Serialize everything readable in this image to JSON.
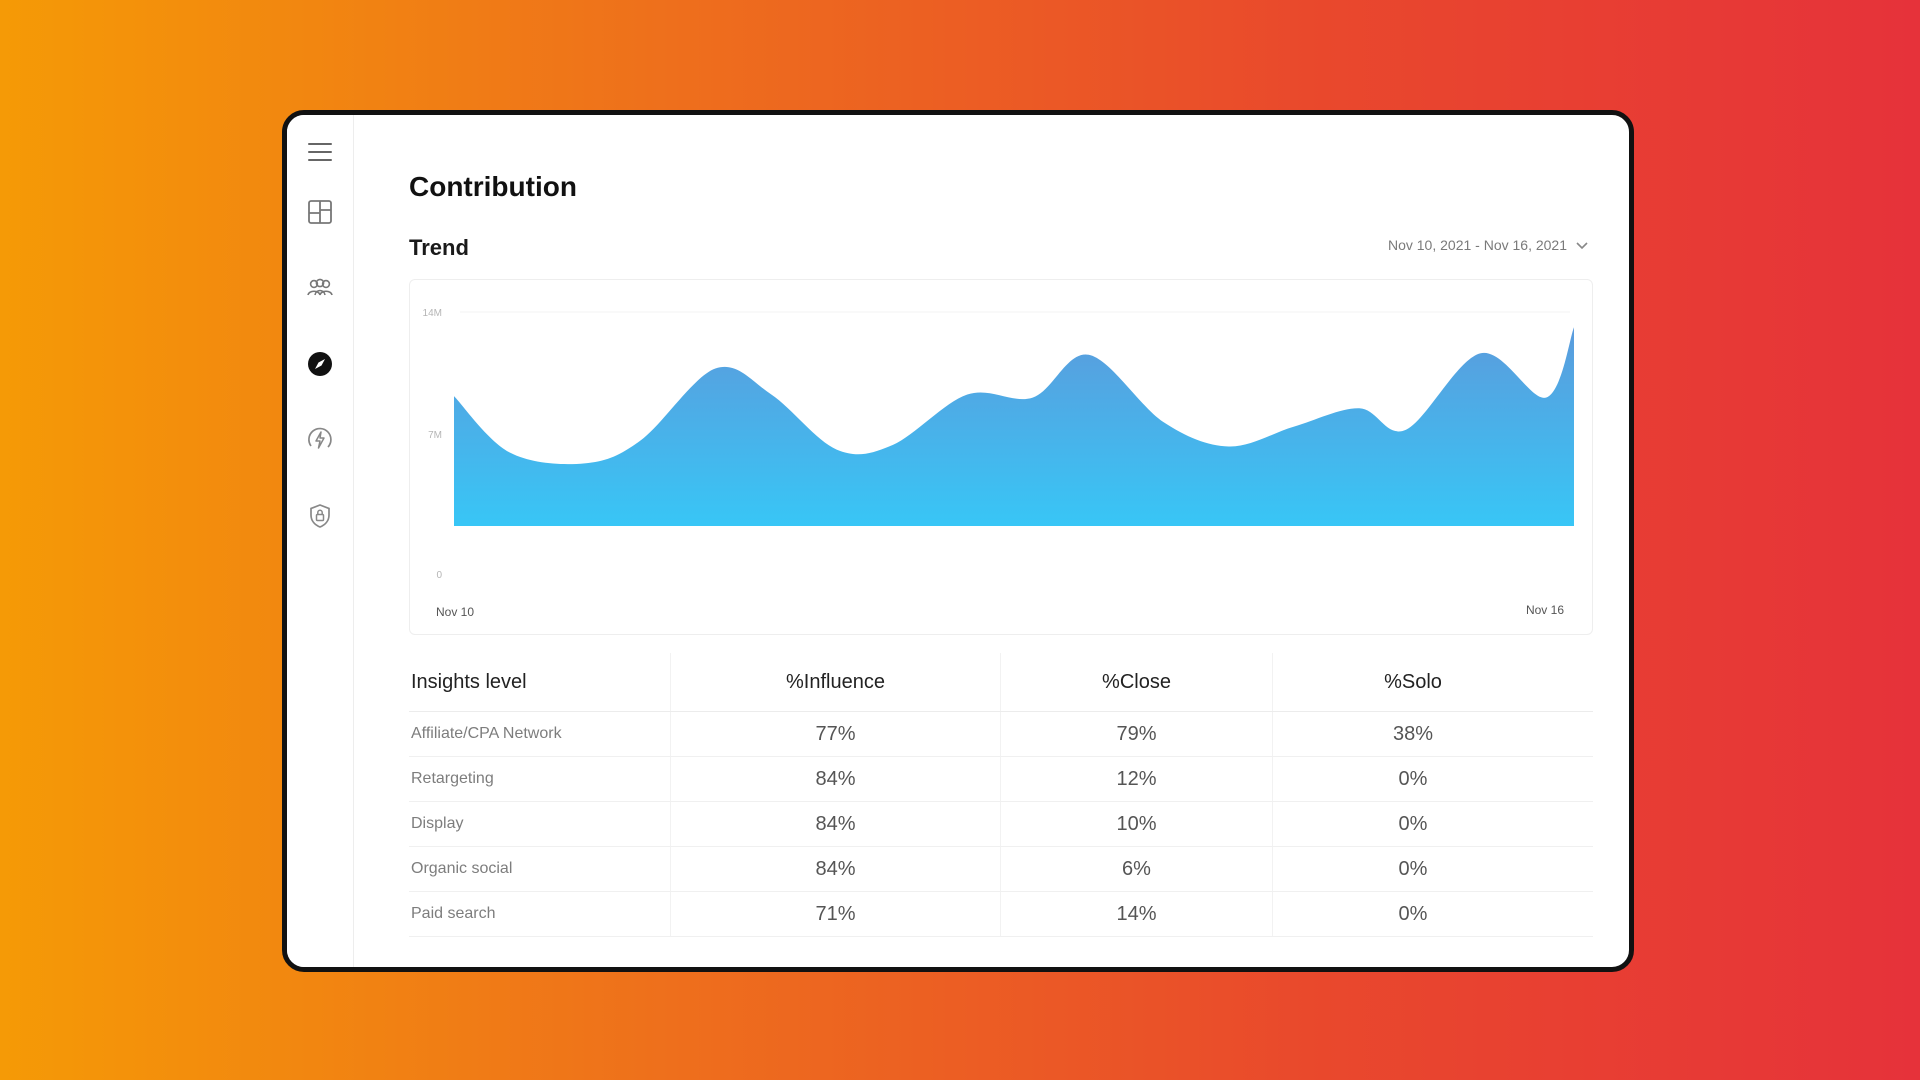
{
  "sidebar": {
    "items": [
      {
        "icon": "menu-icon",
        "active": false
      },
      {
        "icon": "dashboard-icon",
        "active": false
      },
      {
        "icon": "users-group-icon",
        "active": false
      },
      {
        "icon": "compass-icon",
        "active": true
      },
      {
        "icon": "lightning-icon",
        "active": false
      },
      {
        "icon": "shield-lock-icon",
        "active": false
      }
    ]
  },
  "page": {
    "title": "Contribution"
  },
  "trend": {
    "title": "Trend",
    "date_range": "Nov 10, 2021 - Nov 16, 2021"
  },
  "colors": {
    "area_top": "#5b9bdc",
    "area_bottom": "#38c6f6"
  },
  "chart_data": {
    "type": "area",
    "y_ticks": [
      "14M",
      "7M",
      "0"
    ],
    "ylim": [
      0,
      14
    ],
    "x_labels": [
      "Nov 10",
      "Nov 16"
    ],
    "x": [
      0,
      0.3,
      0.7,
      1.0,
      1.4,
      1.7,
      2.05,
      2.35,
      2.75,
      3.1,
      3.4,
      3.8,
      4.15,
      4.5,
      4.85,
      5.1,
      5.5,
      5.85,
      6.0
    ],
    "values": [
      8.5,
      4.8,
      4.1,
      5.6,
      10.3,
      8.6,
      5.0,
      5.3,
      8.6,
      8.4,
      11.2,
      6.8,
      5.2,
      6.5,
      7.7,
      6.3,
      11.3,
      8.4,
      13.0
    ],
    "grid": false,
    "legend": "none"
  },
  "table": {
    "columns": [
      "Insights level",
      "%Influence",
      "%Close",
      "%Solo"
    ],
    "rows": [
      [
        "Affiliate/CPA Network",
        "77%",
        "79%",
        "38%"
      ],
      [
        "Retargeting",
        "84%",
        "12%",
        "0%"
      ],
      [
        "Display",
        "84%",
        "10%",
        "0%"
      ],
      [
        "Organic social",
        "84%",
        "6%",
        "0%"
      ],
      [
        "Paid search",
        "71%",
        "14%",
        "0%"
      ]
    ]
  }
}
